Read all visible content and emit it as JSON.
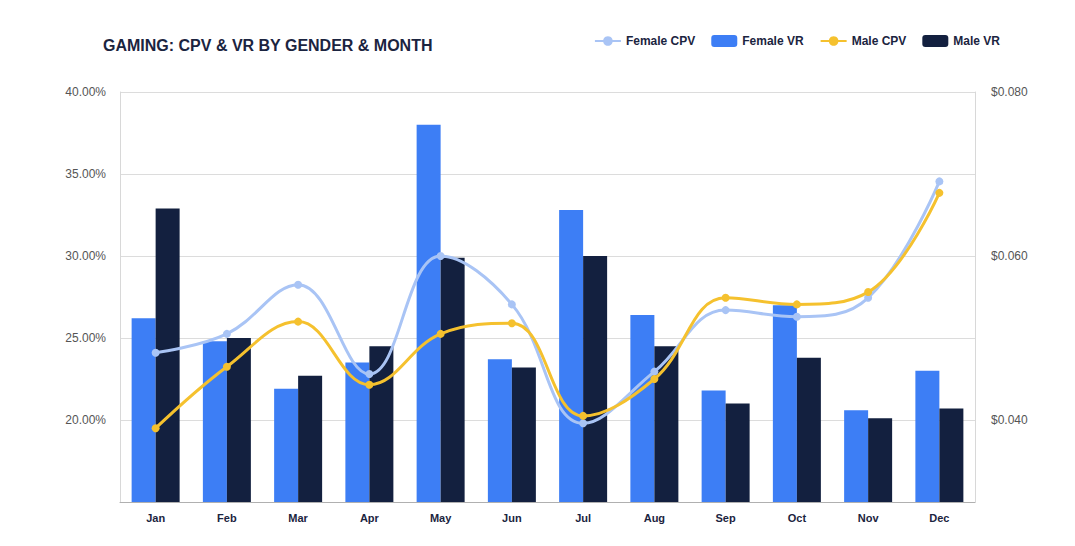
{
  "chart_data": {
    "type": "bar",
    "title": "GAMING: CPV & VR BY GENDER & MONTH",
    "categories": [
      "Jan",
      "Feb",
      "Mar",
      "Apr",
      "May",
      "Jun",
      "Jul",
      "Aug",
      "Sep",
      "Oct",
      "Nov",
      "Dec"
    ],
    "series": [
      {
        "name": "Female CPV",
        "type": "line",
        "axis": "y2",
        "color": "#a9c4f5",
        "marker": "circle",
        "values": [
          0.0482,
          0.0505,
          0.0565,
          0.0456,
          0.06,
          0.0541,
          0.0396,
          0.0459,
          0.0534,
          0.0526,
          0.0549,
          0.0691
        ]
      },
      {
        "name": "Female VR",
        "type": "bar",
        "color": "#3d7ef5",
        "values": [
          26.2,
          24.8,
          21.9,
          23.5,
          38.0,
          23.7,
          32.8,
          26.4,
          21.8,
          27.0,
          20.6,
          23.0
        ]
      },
      {
        "name": "Male CPV",
        "type": "line",
        "axis": "y2",
        "color": "#f5c12e",
        "marker": "circle",
        "values": [
          0.039,
          0.0465,
          0.052,
          0.0443,
          0.0505,
          0.0518,
          0.0405,
          0.045,
          0.0549,
          0.0541,
          0.0556,
          0.0677
        ]
      },
      {
        "name": "Male VR",
        "type": "bar",
        "color": "#13203f",
        "values": [
          32.9,
          25.0,
          22.7,
          24.5,
          29.9,
          23.2,
          30.0,
          24.5,
          21.0,
          23.8,
          20.1,
          20.7
        ]
      }
    ],
    "ylim": [
      15,
      40
    ],
    "yticks": [
      {
        "value": 20,
        "label": "20.00%"
      },
      {
        "value": 25,
        "label": "25.00%"
      },
      {
        "value": 30,
        "label": "30.00%"
      },
      {
        "value": 35,
        "label": "35.00%"
      },
      {
        "value": 40,
        "label": "40.00%"
      }
    ],
    "y2lim": [
      0.03,
      0.08
    ],
    "y2ticks": [
      {
        "value": 0.04,
        "label": "$0.040"
      },
      {
        "value": 0.06,
        "label": "$0.060"
      },
      {
        "value": 0.08,
        "label": "$0.080"
      }
    ],
    "grid": true,
    "legend": "top-right"
  }
}
